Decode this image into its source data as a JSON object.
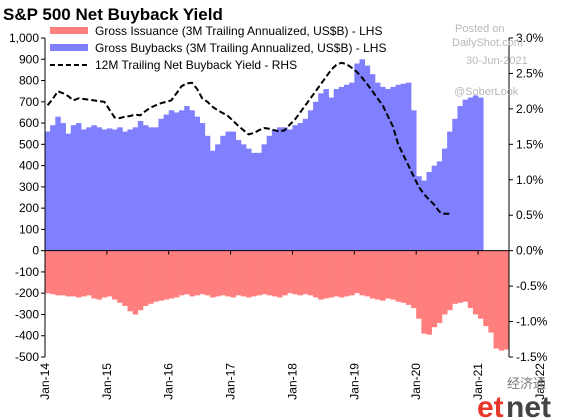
{
  "chart_data": {
    "type": "bar",
    "title": "S&P 500 Net Buyback Yield",
    "xlabel": "",
    "ylabel": "",
    "ylim": [
      -500,
      1000
    ],
    "y2lim": [
      -1.5,
      3.0
    ],
    "y_ticks": [
      1000,
      900,
      800,
      700,
      600,
      500,
      400,
      300,
      200,
      100,
      0,
      -100,
      -200,
      -300,
      -400,
      -500
    ],
    "y_tick_labels": [
      "1,000",
      "900",
      "800",
      "700",
      "600",
      "500",
      "400",
      "300",
      "200",
      "100",
      "0",
      "-100",
      "-200",
      "-300",
      "-400",
      "-500"
    ],
    "y2_ticks": [
      3.0,
      2.5,
      2.0,
      1.5,
      1.0,
      0.5,
      0.0,
      -0.5,
      -1.0,
      -1.5
    ],
    "y2_tick_labels": [
      "3.0%",
      "2.5%",
      "2.0%",
      "1.5%",
      "1.0%",
      "0.5%",
      "0.0%",
      "-0.5%",
      "-1.0%",
      "-1.5%"
    ],
    "x_tick_labels": [
      "Jan-14",
      "Jan-15",
      "Jan-16",
      "Jan-17",
      "Jan-18",
      "Jan-19",
      "Jan-20",
      "Jan-21",
      "Jan-22"
    ],
    "x_ticks_month_index": [
      0,
      12,
      24,
      36,
      48,
      60,
      72,
      84,
      96
    ],
    "month_count": 90,
    "legend_position": "top",
    "grid": false,
    "series": [
      {
        "name": "Gross Issuance (3M Trailing Annualized, US$B) - LHS",
        "color": "#ff7f7f",
        "axis": "left",
        "values": [
          -200,
          -205,
          -210,
          -210,
          -215,
          -215,
          -220,
          -215,
          -210,
          -225,
          -230,
          -220,
          -215,
          -230,
          -245,
          -260,
          -285,
          -300,
          -280,
          -260,
          -250,
          -240,
          -235,
          -230,
          -225,
          -220,
          -210,
          -205,
          -215,
          -210,
          -205,
          -210,
          -220,
          -215,
          -210,
          -215,
          -220,
          -210,
          -215,
          -220,
          -215,
          -210,
          -205,
          -210,
          -215,
          -220,
          -210,
          -200,
          -205,
          -210,
          -205,
          -210,
          -220,
          -230,
          -225,
          -220,
          -215,
          -220,
          -215,
          -210,
          -200,
          -210,
          -215,
          -225,
          -230,
          -235,
          -225,
          -230,
          -240,
          -245,
          -255,
          -270,
          -320,
          -390,
          -395,
          -360,
          -340,
          -300,
          -280,
          -250,
          -245,
          -240,
          -270,
          -300,
          -320,
          -355,
          -385,
          -460,
          -470,
          -465
        ]
      },
      {
        "name": "Gross Buybacks (3M Trailing Annualized, US$B) - LHS",
        "color": "#8080ff",
        "axis": "left",
        "values": [
          560,
          590,
          630,
          600,
          550,
          590,
          600,
          570,
          580,
          590,
          580,
          570,
          575,
          570,
          580,
          560,
          570,
          580,
          610,
          590,
          580,
          580,
          620,
          640,
          660,
          650,
          660,
          680,
          660,
          630,
          600,
          540,
          470,
          500,
          540,
          560,
          560,
          520,
          500,
          480,
          460,
          460,
          500,
          540,
          570,
          580,
          580,
          570,
          590,
          600,
          620,
          660,
          700,
          740,
          760,
          720,
          760,
          770,
          780,
          790,
          880,
          900,
          870,
          830,
          790,
          770,
          760,
          770,
          780,
          785,
          790,
          660,
          350,
          330,
          370,
          400,
          420,
          480,
          560,
          620,
          680,
          710,
          720,
          730,
          720
        ]
      },
      {
        "name": "12M Trailing Net Buyback Yield - RHS",
        "color": "#000000",
        "axis": "right",
        "dashed": true,
        "values": [
          2.05,
          2.14,
          2.25,
          2.22,
          2.18,
          2.12,
          2.15,
          2.14,
          2.13,
          2.12,
          2.11,
          2.1,
          1.99,
          1.88,
          1.87,
          1.89,
          1.9,
          1.92,
          1.91,
          1.97,
          2.02,
          2.05,
          2.08,
          2.1,
          2.12,
          2.22,
          2.32,
          2.36,
          2.37,
          2.28,
          2.15,
          2.1,
          2.03,
          1.98,
          1.94,
          1.9,
          1.83,
          1.76,
          1.7,
          1.64,
          1.66,
          1.7,
          1.73,
          1.72,
          1.7,
          1.68,
          1.7,
          1.78,
          1.85,
          1.95,
          2.05,
          2.15,
          2.25,
          2.35,
          2.45,
          2.55,
          2.62,
          2.65,
          2.63,
          2.58,
          2.52,
          2.44,
          2.35,
          2.25,
          2.15,
          2.05,
          1.9,
          1.75,
          1.5,
          1.35,
          1.2,
          1.05,
          0.9,
          0.8,
          0.72,
          0.65,
          0.55,
          0.52,
          0.52
        ]
      }
    ]
  },
  "watermark": {
    "line1": "Posted on",
    "line2": "DailyShot.com",
    "line3": "30-Jun-2021",
    "handle": "@SoberLook"
  },
  "logo": {
    "chinese": "经济通",
    "text_et": "et",
    "text_net": "net"
  },
  "colors": {
    "issuance": "#ff7f7f",
    "buybacks": "#8080ff",
    "yield_line": "#000000",
    "logo_red": "#e8382c",
    "logo_dark": "#444444"
  }
}
